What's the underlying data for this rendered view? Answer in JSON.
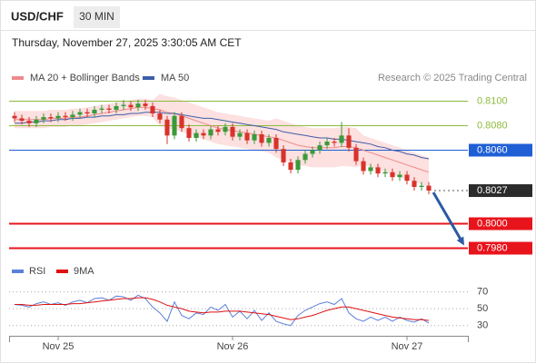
{
  "chart_data": [
    {
      "type": "candlestick",
      "title": "USD/CHF",
      "timeframe": "30 MIN",
      "subtitle": "Thursday, November 27, 2025 3:30:05 AM CET",
      "source": "Research © 2025 Trading Central",
      "up_color": "#3a9a3a",
      "down_color": "#d8332b",
      "arrow_color": "#2b5aa3",
      "open": [
        0.8088,
        0.8086,
        0.8084,
        0.8082,
        0.8085,
        0.8087,
        0.8086,
        0.8088,
        0.8087,
        0.8089,
        0.8091,
        0.809,
        0.8093,
        0.8094,
        0.8093,
        0.8096,
        0.8097,
        0.8095,
        0.8098,
        0.8096,
        0.809,
        0.8085,
        0.8072,
        0.8088,
        0.8078,
        0.807,
        0.8074,
        0.8072,
        0.8077,
        0.8075,
        0.8079,
        0.8071,
        0.8074,
        0.8068,
        0.8073,
        0.8066,
        0.807,
        0.8061,
        0.805,
        0.8044,
        0.8052,
        0.8057,
        0.806,
        0.8064,
        0.8067,
        0.8066,
        0.8072,
        0.8062,
        0.8051,
        0.8043,
        0.8046,
        0.8041,
        0.8042,
        0.8038,
        0.804,
        0.8035,
        0.803,
        0.8031
      ],
      "high": [
        0.8091,
        0.8089,
        0.8087,
        0.8088,
        0.809,
        0.809,
        0.8091,
        0.8091,
        0.8092,
        0.8094,
        0.8094,
        0.8096,
        0.8097,
        0.8097,
        0.8099,
        0.8101,
        0.81,
        0.8101,
        0.8101,
        0.8099,
        0.8093,
        0.8088,
        0.8091,
        0.8091,
        0.8081,
        0.8077,
        0.8077,
        0.808,
        0.808,
        0.8082,
        0.8082,
        0.8077,
        0.8077,
        0.8076,
        0.8076,
        0.8073,
        0.8073,
        0.8064,
        0.8053,
        0.8055,
        0.806,
        0.8063,
        0.8067,
        0.807,
        0.807,
        0.8083,
        0.8078,
        0.8065,
        0.8054,
        0.8049,
        0.8049,
        0.8045,
        0.8045,
        0.8043,
        0.8043,
        0.8038,
        0.8034,
        0.8034
      ],
      "low": [
        0.8083,
        0.8081,
        0.8079,
        0.8079,
        0.8082,
        0.8083,
        0.8083,
        0.8084,
        0.8084,
        0.8086,
        0.8087,
        0.8087,
        0.809,
        0.809,
        0.809,
        0.8093,
        0.8092,
        0.8092,
        0.8093,
        0.8087,
        0.8082,
        0.8065,
        0.8069,
        0.8075,
        0.8067,
        0.8067,
        0.8069,
        0.8069,
        0.8072,
        0.8072,
        0.8068,
        0.8068,
        0.8065,
        0.8065,
        0.8063,
        0.8063,
        0.8058,
        0.8047,
        0.8041,
        0.8041,
        0.8049,
        0.8054,
        0.8057,
        0.8061,
        0.8063,
        0.8063,
        0.8059,
        0.8048,
        0.804,
        0.804,
        0.8038,
        0.8038,
        0.8035,
        0.8035,
        0.8032,
        0.8027,
        0.8027,
        0.8024
      ],
      "close": [
        0.8086,
        0.8084,
        0.8082,
        0.8085,
        0.8087,
        0.8086,
        0.8088,
        0.8087,
        0.8089,
        0.8091,
        0.809,
        0.8093,
        0.8094,
        0.8093,
        0.8096,
        0.8097,
        0.8095,
        0.8098,
        0.8096,
        0.809,
        0.8085,
        0.8072,
        0.8088,
        0.8078,
        0.807,
        0.8074,
        0.8072,
        0.8077,
        0.8075,
        0.8079,
        0.8071,
        0.8074,
        0.8068,
        0.8073,
        0.8066,
        0.807,
        0.8061,
        0.805,
        0.8044,
        0.8052,
        0.8057,
        0.806,
        0.8064,
        0.8067,
        0.8066,
        0.8072,
        0.8062,
        0.8051,
        0.8043,
        0.8046,
        0.8041,
        0.8042,
        0.8038,
        0.804,
        0.8035,
        0.803,
        0.8031,
        0.8027
      ],
      "series": [
        {
          "name": "MA 20 + Bollinger Bands",
          "color": "#ee8a8a",
          "band_color": "#fde0e0",
          "values": [
            0.8085,
            0.8085,
            0.8085,
            0.8085,
            0.8085,
            0.8086,
            0.8086,
            0.8086,
            0.8087,
            0.8087,
            0.8088,
            0.8089,
            0.809,
            0.8091,
            0.8092,
            0.8093,
            0.8094,
            0.8095,
            0.8095,
            0.8094,
            0.8093,
            0.8091,
            0.809,
            0.8088,
            0.8086,
            0.8084,
            0.8082,
            0.808,
            0.8078,
            0.8077,
            0.8076,
            0.8075,
            0.8074,
            0.8073,
            0.8072,
            0.8071,
            0.807,
            0.8068,
            0.8066,
            0.8064,
            0.8063,
            0.8062,
            0.8062,
            0.8062,
            0.8062,
            0.8063,
            0.8063,
            0.8062,
            0.806,
            0.8058,
            0.8056,
            0.8054,
            0.8052,
            0.805,
            0.8048,
            0.8046,
            0.8044,
            0.8042
          ],
          "upper": [
            0.8092,
            0.8092,
            0.8092,
            0.8092,
            0.8092,
            0.8093,
            0.8093,
            0.8093,
            0.8094,
            0.8094,
            0.8095,
            0.8096,
            0.8097,
            0.8098,
            0.8099,
            0.81,
            0.8101,
            0.8102,
            0.8102,
            0.8101,
            0.8106,
            0.8104,
            0.8103,
            0.8101,
            0.8099,
            0.8097,
            0.8095,
            0.8093,
            0.8091,
            0.809,
            0.8089,
            0.8088,
            0.8087,
            0.8086,
            0.8085,
            0.8084,
            0.8086,
            0.8084,
            0.8082,
            0.808,
            0.8079,
            0.8078,
            0.8078,
            0.8078,
            0.8078,
            0.8079,
            0.8079,
            0.8078,
            0.8072,
            0.807,
            0.8068,
            0.8066,
            0.8064,
            0.8062,
            0.806,
            0.8058,
            0.8056,
            0.8054
          ],
          "lower": [
            0.8078,
            0.8078,
            0.8078,
            0.8078,
            0.8078,
            0.8079,
            0.8079,
            0.8079,
            0.808,
            0.808,
            0.8081,
            0.8082,
            0.8083,
            0.8084,
            0.8085,
            0.8086,
            0.8087,
            0.8088,
            0.8088,
            0.8087,
            0.808,
            0.8078,
            0.8077,
            0.8075,
            0.8073,
            0.8071,
            0.8069,
            0.8067,
            0.8065,
            0.8064,
            0.8063,
            0.8062,
            0.8061,
            0.806,
            0.8059,
            0.8058,
            0.8054,
            0.8052,
            0.805,
            0.8048,
            0.8047,
            0.8046,
            0.8046,
            0.8046,
            0.8046,
            0.8047,
            0.8047,
            0.8046,
            0.8048,
            0.8046,
            0.8044,
            0.8042,
            0.804,
            0.8038,
            0.8036,
            0.8034,
            0.8032,
            0.803
          ]
        },
        {
          "name": "MA 50",
          "color": "#3b5ea8",
          "values": [
            0.8082,
            0.8082,
            0.8083,
            0.8083,
            0.8084,
            0.8084,
            0.8085,
            0.8085,
            0.8086,
            0.8086,
            0.8087,
            0.8087,
            0.8088,
            0.8088,
            0.8089,
            0.8089,
            0.809,
            0.809,
            0.8091,
            0.8091,
            0.8091,
            0.809,
            0.809,
            0.8089,
            0.8088,
            0.8087,
            0.8086,
            0.8086,
            0.8085,
            0.8084,
            0.8083,
            0.8082,
            0.8081,
            0.808,
            0.8079,
            0.8078,
            0.8077,
            0.8075,
            0.8074,
            0.8073,
            0.8072,
            0.8071,
            0.807,
            0.807,
            0.8069,
            0.8069,
            0.8068,
            0.8067,
            0.8066,
            0.8065,
            0.8063,
            0.8062,
            0.806,
            0.8059,
            0.8057,
            0.8056,
            0.8054,
            0.8053
          ]
        }
      ],
      "ylim": [
        0.797,
        0.812
      ],
      "levels": [
        {
          "value": 0.81,
          "label": "0.8100",
          "color": "#8dbb3c",
          "boxed": false,
          "line_style": "solid"
        },
        {
          "value": 0.808,
          "label": "0.8080",
          "color": "#8dbb3c",
          "boxed": false,
          "line_style": "solid"
        },
        {
          "value": 0.806,
          "label": "0.8060",
          "color": "#1f5fd6",
          "boxed": true,
          "line_style": "solid"
        },
        {
          "value": 0.8027,
          "label": "0.8027",
          "color": "#2b2b2b",
          "boxed": true,
          "line_style": "dotted"
        },
        {
          "value": 0.8,
          "label": "0.8000",
          "color": "#e8141c",
          "boxed": true,
          "line_style": "bold"
        },
        {
          "value": 0.798,
          "label": "0.7980",
          "color": "#e8141c",
          "boxed": true,
          "line_style": "bold"
        }
      ]
    },
    {
      "type": "line",
      "categories": [
        null,
        null,
        null,
        null,
        null,
        null,
        "Nov 25",
        null,
        null,
        null,
        null,
        null,
        null,
        null,
        null,
        null,
        null,
        null,
        null,
        null,
        null,
        null,
        null,
        null,
        null,
        null,
        null,
        null,
        null,
        null,
        "Nov 26",
        null,
        null,
        null,
        null,
        null,
        null,
        null,
        null,
        null,
        null,
        null,
        null,
        null,
        null,
        null,
        null,
        null,
        null,
        null,
        null,
        null,
        null,
        null,
        "Nov 27",
        null,
        null,
        null
      ],
      "series": [
        {
          "name": "RSI",
          "color": "#5b80d8",
          "values": [
            55,
            54,
            52,
            56,
            58,
            55,
            57,
            54,
            58,
            60,
            57,
            62,
            63,
            60,
            65,
            64,
            60,
            66,
            62,
            52,
            45,
            35,
            58,
            42,
            38,
            45,
            43,
            52,
            48,
            55,
            40,
            47,
            38,
            48,
            36,
            45,
            35,
            32,
            30,
            42,
            48,
            52,
            56,
            58,
            55,
            62,
            45,
            38,
            35,
            40,
            36,
            40,
            35,
            40,
            36,
            34,
            38,
            33
          ]
        },
        {
          "name": "9MA",
          "color": "#e01010",
          "values": [
            55,
            55,
            54,
            54,
            55,
            55,
            55,
            55,
            56,
            56,
            57,
            58,
            59,
            60,
            61,
            62,
            62,
            63,
            63,
            61,
            58,
            54,
            52,
            50,
            47,
            46,
            45,
            46,
            46,
            47,
            47,
            47,
            46,
            45,
            44,
            43,
            41,
            39,
            37,
            38,
            40,
            42,
            45,
            48,
            50,
            52,
            52,
            50,
            48,
            46,
            44,
            42,
            40,
            39,
            38,
            37,
            37,
            36
          ]
        }
      ],
      "ylim": [
        20,
        90
      ],
      "yticks": [
        30,
        50,
        70
      ]
    }
  ]
}
